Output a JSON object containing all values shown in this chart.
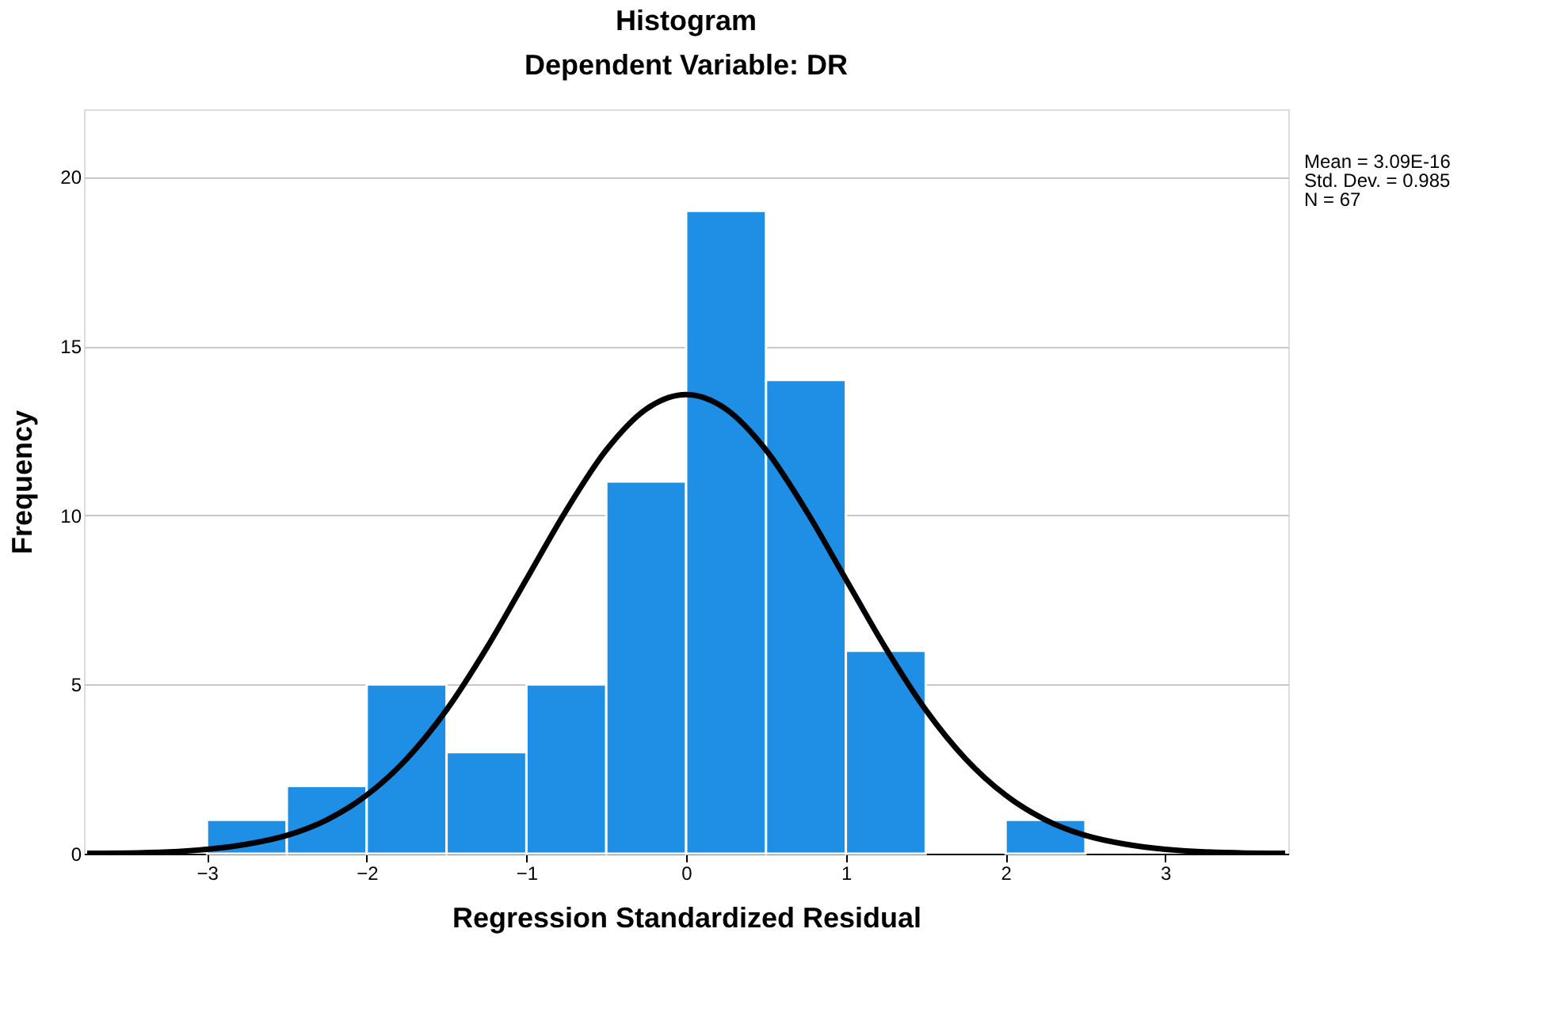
{
  "chart_data": {
    "type": "histogram",
    "title": "Histogram",
    "subtitle": "Dependent Variable: DR",
    "xlabel": "Regression Standardized Residual",
    "ylabel": "Frequency",
    "bins": [
      -3.0,
      -2.5,
      -2.0,
      -1.5,
      -1.0,
      -0.5,
      0.0,
      0.5,
      1.0,
      1.5,
      2.0,
      2.5
    ],
    "values": [
      1,
      2,
      5,
      3,
      5,
      11,
      19,
      14,
      6,
      0,
      1
    ],
    "color": "#1f8fe6",
    "series": [
      {
        "type": "line",
        "color": "#000000",
        "x": [
          -3.75,
          -3.5,
          -3.0,
          -2.75,
          -2.5,
          -2.25,
          -2.0,
          -1.75,
          -1.5,
          -1.25,
          -1.0,
          -0.75,
          -0.5,
          -0.25,
          0.0,
          0.25,
          0.5,
          0.75,
          1.0,
          1.25,
          1.5,
          1.75,
          2.0,
          2.25,
          2.5,
          2.75,
          3.0,
          3.5,
          3.75
        ],
        "values": [
          0.01,
          0.02,
          0.13,
          0.28,
          0.54,
          1.0,
          1.73,
          2.8,
          4.25,
          6.07,
          8.11,
          10.15,
          11.93,
          13.14,
          13.57,
          13.14,
          11.93,
          10.15,
          8.11,
          6.07,
          4.25,
          2.8,
          1.73,
          1.0,
          0.54,
          0.28,
          0.13,
          0.02,
          0.01
        ]
      }
    ],
    "xlim": [
      -3.77,
      3.77
    ],
    "xticks": [
      -3,
      -2,
      -1,
      0,
      1,
      2,
      3
    ],
    "ylim": [
      0,
      22
    ],
    "yticks": [
      0,
      5,
      10,
      15,
      20
    ],
    "grid": "y",
    "annotations": [
      "Mean = 3.09E-16",
      "Std. Dev. = 0.985",
      "N = 67"
    ]
  }
}
